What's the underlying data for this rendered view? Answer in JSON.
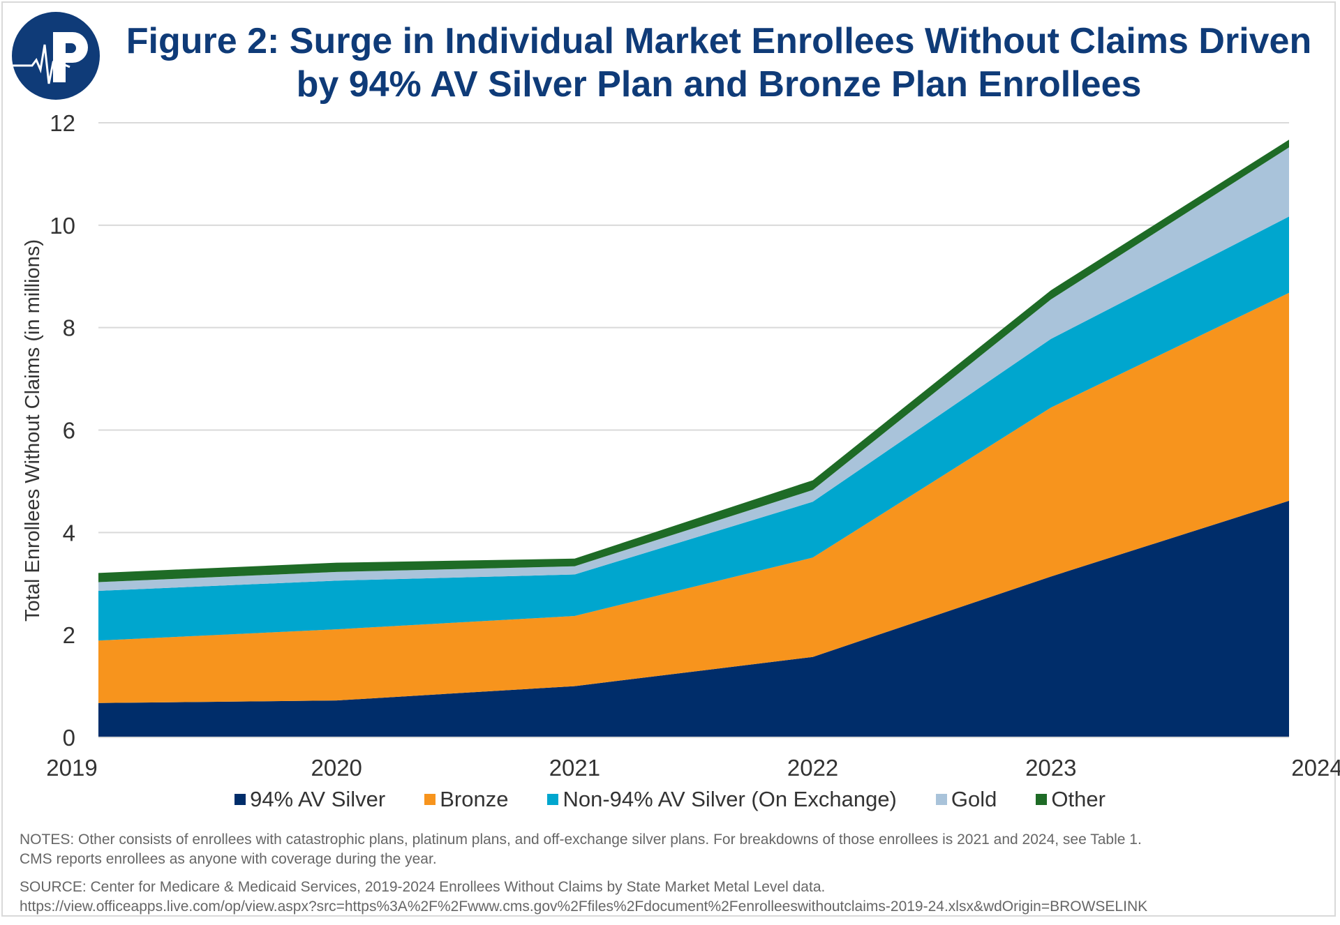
{
  "title_line1": "Figure 2: Surge in Individual Market Enrollees Without Claims Driven",
  "title_line2": "by 94% AV Silver Plan and Bronze Plan Enrollees",
  "logo_text": "P",
  "notes_line1": "NOTES: Other consists of enrollees with catastrophic plans, platinum plans, and off-exchange silver plans. For breakdowns of those enrollees is 2021 and 2024, see Table 1.",
  "notes_line2": "CMS reports enrollees as anyone with coverage during the year.",
  "source_line1": "SOURCE: Center for Medicare & Medicaid Services, 2019-2024 Enrollees Without Claims by State Market Metal Level data.",
  "source_line2": "https://view.officeapps.live.com/op/view.aspx?src=https%3A%2F%2Fwww.cms.gov%2Ffiles%2Fdocument%2Fenrolleeswithoutclaims-2019-24.xlsx&wdOrigin=BROWSELINK",
  "chart_data": {
    "type": "area",
    "stacked": true,
    "x": [
      "2019",
      "2020",
      "2021",
      "2022",
      "2023",
      "2024"
    ],
    "ylabel": "Total Enrollees Without Claims (in millions)",
    "xlabel": "",
    "ylim": [
      0,
      12
    ],
    "yticks": [
      "0",
      "2",
      "4",
      "6",
      "8",
      "10",
      "12"
    ],
    "grid": true,
    "legend_position": "bottom",
    "series": [
      {
        "name": "94% AV Silver",
        "color": "#002D6A",
        "values": [
          0.67,
          0.72,
          1.0,
          1.57,
          3.14,
          4.62
        ]
      },
      {
        "name": "Bronze",
        "color": "#F7941D",
        "values": [
          1.22,
          1.39,
          1.37,
          1.94,
          3.3,
          4.06
        ]
      },
      {
        "name": "Non-94% AV Silver (On Exchange)",
        "color": "#00A6CE",
        "values": [
          0.97,
          0.95,
          0.81,
          1.09,
          1.34,
          1.49
        ]
      },
      {
        "name": "Gold",
        "color": "#A9C3DA",
        "values": [
          0.17,
          0.17,
          0.16,
          0.23,
          0.77,
          1.35
        ]
      },
      {
        "name": "Other",
        "color": "#1E6B26",
        "values": [
          0.18,
          0.18,
          0.15,
          0.19,
          0.18,
          0.15
        ]
      }
    ]
  }
}
